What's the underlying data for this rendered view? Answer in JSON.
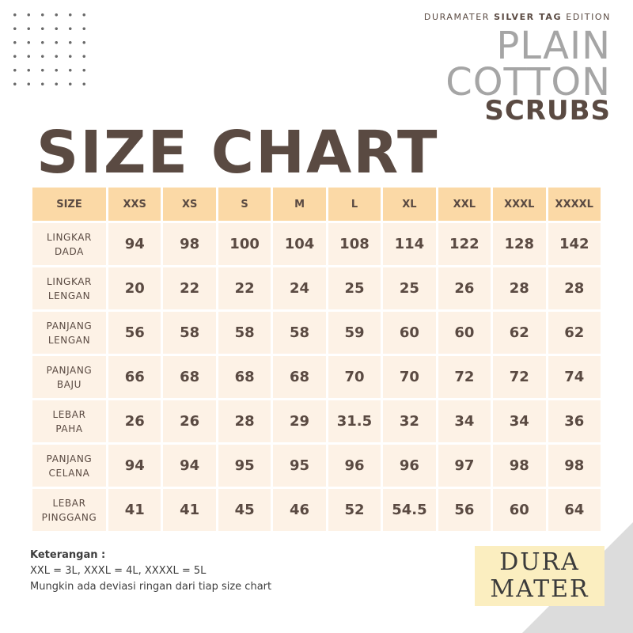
{
  "brand": {
    "line_prefix": "DURAMATER",
    "line_bold": "SILVER TAG",
    "line_suffix": "EDITION",
    "title_line1": "PLAIN",
    "title_line2": "COTTON",
    "title_line3": "SCRUBS"
  },
  "heading": "SIZE CHART",
  "table": {
    "header": [
      "SIZE",
      "XXS",
      "XS",
      "S",
      "M",
      "L",
      "XL",
      "XXL",
      "XXXL",
      "XXXXL"
    ],
    "rows": [
      {
        "label1": "LINGKAR",
        "label2": "DADA",
        "values": [
          "94",
          "98",
          "100",
          "104",
          "108",
          "114",
          "122",
          "128",
          "142"
        ]
      },
      {
        "label1": "LINGKAR",
        "label2": "LENGAN",
        "values": [
          "20",
          "22",
          "22",
          "24",
          "25",
          "25",
          "26",
          "28",
          "28"
        ]
      },
      {
        "label1": "PANJANG",
        "label2": "LENGAN",
        "values": [
          "56",
          "58",
          "58",
          "58",
          "59",
          "60",
          "60",
          "62",
          "62"
        ]
      },
      {
        "label1": "PANJANG",
        "label2": "BAJU",
        "values": [
          "66",
          "68",
          "68",
          "68",
          "70",
          "70",
          "72",
          "72",
          "74"
        ]
      },
      {
        "label1": "LEBAR",
        "label2": "PAHA",
        "values": [
          "26",
          "26",
          "28",
          "29",
          "31.5",
          "32",
          "34",
          "34",
          "36"
        ]
      },
      {
        "label1": "PANJANG",
        "label2": "CELANA",
        "values": [
          "94",
          "94",
          "95",
          "95",
          "96",
          "96",
          "97",
          "98",
          "98"
        ]
      },
      {
        "label1": "LEBAR",
        "label2": "PINGGANG",
        "values": [
          "41",
          "41",
          "45",
          "46",
          "52",
          "54.5",
          "56",
          "60",
          "64"
        ]
      }
    ]
  },
  "notes": {
    "heading": "Keterangan :",
    "line1": "XXL = 3L, XXXL = 4L, XXXXL = 5L",
    "line2": "Mungkin ada deviasi ringan dari tiap size chart"
  },
  "logo": {
    "line1": "DURA",
    "line2": "MATER"
  },
  "colors": {
    "header_fill": "#fbd9a6",
    "cell_fill": "#fdf2e6",
    "text_brown": "#5a4a42",
    "title_gray": "#a5a5a5",
    "logo_fill": "#fbeec0"
  }
}
